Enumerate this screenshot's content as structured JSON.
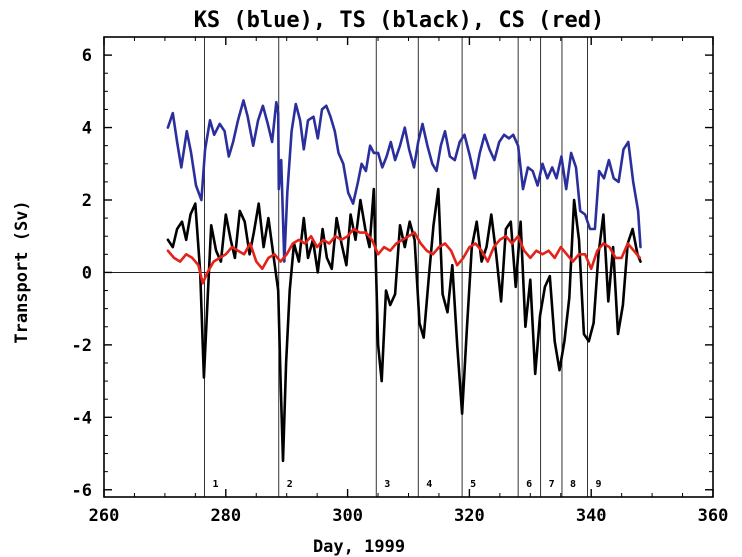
{
  "chart_data": {
    "type": "line",
    "title": "KS (blue), TS (black), CS (red)",
    "xlabel": "Day, 1999",
    "ylabel": "Transport (Sv)",
    "xlim": [
      260,
      360
    ],
    "ylim": [
      -6.2,
      6.5
    ],
    "xticks": [
      260,
      280,
      300,
      320,
      340,
      360
    ],
    "yticks": [
      -6,
      -4,
      -2,
      0,
      2,
      4,
      6
    ],
    "zero_line": true,
    "events": [
      {
        "label": "1",
        "x": 276.5
      },
      {
        "label": "2",
        "x": 288.7
      },
      {
        "label": "3",
        "x": 304.7
      },
      {
        "label": "4",
        "x": 311.6
      },
      {
        "label": "5",
        "x": 318.8
      },
      {
        "label": "6",
        "x": 328.0
      },
      {
        "label": "7",
        "x": 331.7
      },
      {
        "label": "8",
        "x": 335.2
      },
      {
        "label": "9",
        "x": 339.4
      }
    ],
    "series": [
      {
        "name": "KS",
        "color": "#2b2f9c",
        "x": [
          270.5,
          271.3,
          272.0,
          272.7,
          273.6,
          274.3,
          275.1,
          276.0,
          276.6,
          277.4,
          278.1,
          279.0,
          279.8,
          280.5,
          281.2,
          282.0,
          282.9,
          283.6,
          284.5,
          285.3,
          286.1,
          286.9,
          287.6,
          288.3,
          288.6,
          288.7,
          289.1,
          289.6,
          290.1,
          290.8,
          291.5,
          292.2,
          292.8,
          293.5,
          294.4,
          295.1,
          295.8,
          296.5,
          297.2,
          297.9,
          298.5,
          299.3,
          300.1,
          300.9,
          301.7,
          302.3,
          303.0,
          303.7,
          304.3,
          305.0,
          305.7,
          306.4,
          307.1,
          307.8,
          308.6,
          309.4,
          310.1,
          310.9,
          311.6,
          312.3,
          313.1,
          313.9,
          314.6,
          315.3,
          316.0,
          316.8,
          317.6,
          318.4,
          319.2,
          320.1,
          320.9,
          321.7,
          322.5,
          323.3,
          324.1,
          324.9,
          325.7,
          326.5,
          327.2,
          328.0,
          328.8,
          329.6,
          330.4,
          331.2,
          332.0,
          332.8,
          333.6,
          334.3,
          335.1,
          335.9,
          336.7,
          337.5,
          338.2,
          339.0,
          339.8,
          340.6,
          341.3,
          342.1,
          342.9,
          343.7,
          344.5,
          345.3,
          346.1,
          346.9,
          347.7,
          348.1
        ],
        "y": [
          4.0,
          4.4,
          3.6,
          2.9,
          3.9,
          3.3,
          2.4,
          2.0,
          3.4,
          4.2,
          3.8,
          4.1,
          3.9,
          3.2,
          3.6,
          4.2,
          4.75,
          4.3,
          3.5,
          4.2,
          4.6,
          4.1,
          3.6,
          4.7,
          4.4,
          2.3,
          3.1,
          0.3,
          2.2,
          3.9,
          4.65,
          4.2,
          3.4,
          4.2,
          4.3,
          3.7,
          4.5,
          4.6,
          4.3,
          3.9,
          3.3,
          3.0,
          2.2,
          1.9,
          2.5,
          3.0,
          2.8,
          3.5,
          3.3,
          3.3,
          2.9,
          3.2,
          3.6,
          3.1,
          3.5,
          4.0,
          3.4,
          2.9,
          3.6,
          4.1,
          3.5,
          3.0,
          2.8,
          3.5,
          3.9,
          3.2,
          3.1,
          3.6,
          3.8,
          3.2,
          2.6,
          3.3,
          3.8,
          3.4,
          3.1,
          3.6,
          3.8,
          3.7,
          3.8,
          3.5,
          2.3,
          2.9,
          2.8,
          2.4,
          3.0,
          2.6,
          2.9,
          2.6,
          3.2,
          2.3,
          3.3,
          2.9,
          1.7,
          1.6,
          1.2,
          1.2,
          2.8,
          2.6,
          3.1,
          2.6,
          2.5,
          3.4,
          3.6,
          2.5,
          1.7,
          0.7
        ]
      },
      {
        "name": "TS",
        "color": "#000000",
        "x": [
          270.5,
          271.3,
          272.0,
          272.8,
          273.5,
          274.2,
          275.0,
          275.8,
          276.4,
          277.0,
          277.6,
          278.4,
          279.2,
          280.0,
          280.8,
          281.5,
          282.3,
          283.1,
          283.9,
          284.6,
          285.4,
          286.2,
          287.0,
          287.8,
          288.6,
          289.0,
          289.4,
          289.9,
          290.5,
          291.2,
          292.0,
          292.8,
          293.5,
          294.3,
          295.1,
          295.9,
          296.6,
          297.4,
          298.2,
          299.0,
          299.8,
          300.5,
          301.3,
          302.1,
          302.9,
          303.6,
          304.3,
          305.0,
          305.6,
          306.3,
          307.0,
          307.8,
          308.6,
          309.4,
          310.2,
          311.0,
          311.8,
          312.5,
          313.3,
          314.1,
          314.9,
          315.6,
          316.4,
          317.2,
          318.0,
          318.8,
          319.6,
          320.4,
          321.2,
          322.0,
          322.8,
          323.6,
          324.4,
          325.2,
          326.0,
          326.8,
          327.6,
          328.4,
          329.2,
          330.0,
          330.8,
          331.6,
          332.4,
          333.2,
          334.0,
          334.8,
          335.6,
          336.4,
          337.2,
          338.0,
          338.8,
          339.6,
          340.4,
          341.2,
          342.0,
          342.8,
          343.6,
          344.4,
          345.2,
          346.0,
          346.8,
          347.6,
          348.1
        ],
        "y": [
          0.9,
          0.7,
          1.2,
          1.4,
          0.9,
          1.6,
          1.9,
          0.0,
          -2.9,
          -0.8,
          1.3,
          0.6,
          0.3,
          1.6,
          0.9,
          0.4,
          1.7,
          1.4,
          0.5,
          1.1,
          1.9,
          0.7,
          1.5,
          0.5,
          -0.5,
          -3.0,
          -5.2,
          -2.5,
          -0.5,
          0.8,
          0.3,
          1.5,
          0.4,
          0.9,
          0.0,
          1.2,
          0.4,
          0.1,
          1.5,
          0.8,
          0.2,
          1.6,
          0.9,
          2.0,
          1.2,
          0.7,
          2.3,
          -2.0,
          -3.0,
          -0.5,
          -0.9,
          -0.6,
          1.3,
          0.7,
          1.4,
          0.9,
          -1.4,
          -1.8,
          -0.2,
          1.3,
          2.3,
          -0.6,
          -1.1,
          0.2,
          -2.0,
          -3.9,
          -1.5,
          0.7,
          1.4,
          0.3,
          0.7,
          1.6,
          0.5,
          -0.8,
          1.2,
          1.4,
          -0.4,
          1.4,
          -1.5,
          -0.2,
          -2.8,
          -1.2,
          -0.4,
          -0.1,
          -1.9,
          -2.7,
          -1.9,
          -0.7,
          2.0,
          0.9,
          -1.7,
          -1.9,
          -1.4,
          0.5,
          1.6,
          -0.8,
          0.7,
          -1.7,
          -0.9,
          0.8,
          1.2,
          0.5,
          0.3
        ]
      },
      {
        "name": "CS",
        "color": "#e32219",
        "x": [
          270.5,
          271.5,
          272.5,
          273.5,
          274.5,
          275.5,
          276.2,
          277.0,
          278.0,
          279.0,
          280.0,
          281.0,
          282.0,
          283.0,
          284.0,
          285.0,
          286.0,
          287.0,
          288.0,
          289.0,
          290.0,
          291.0,
          292.0,
          293.0,
          294.0,
          295.0,
          296.0,
          297.0,
          298.0,
          299.0,
          300.0,
          301.0,
          302.0,
          303.0,
          304.0,
          305.0,
          306.0,
          307.0,
          308.0,
          309.0,
          310.0,
          311.0,
          312.0,
          313.0,
          314.0,
          315.0,
          316.0,
          317.0,
          318.0,
          319.0,
          320.0,
          321.0,
          322.0,
          323.0,
          324.0,
          325.0,
          326.0,
          327.0,
          328.0,
          329.0,
          330.0,
          331.0,
          332.0,
          333.0,
          334.0,
          335.0,
          336.0,
          337.0,
          338.0,
          339.0,
          340.0,
          341.0,
          342.0,
          343.0,
          344.0,
          345.0,
          346.0,
          347.0,
          348.0
        ],
        "y": [
          0.6,
          0.4,
          0.3,
          0.5,
          0.4,
          0.2,
          -0.3,
          0.0,
          0.3,
          0.4,
          0.5,
          0.7,
          0.6,
          0.5,
          0.8,
          0.3,
          0.1,
          0.4,
          0.5,
          0.3,
          0.5,
          0.8,
          0.9,
          0.8,
          1.0,
          0.7,
          0.9,
          0.8,
          1.0,
          0.9,
          1.0,
          1.2,
          1.1,
          1.1,
          0.9,
          0.5,
          0.7,
          0.6,
          0.8,
          0.9,
          1.0,
          1.1,
          0.8,
          0.6,
          0.5,
          0.7,
          0.8,
          0.6,
          0.2,
          0.4,
          0.7,
          0.8,
          0.6,
          0.3,
          0.7,
          0.9,
          1.0,
          0.8,
          1.0,
          0.6,
          0.4,
          0.6,
          0.5,
          0.6,
          0.4,
          0.7,
          0.5,
          0.3,
          0.5,
          0.5,
          0.1,
          0.6,
          0.8,
          0.7,
          0.4,
          0.4,
          0.8,
          0.6,
          0.4
        ]
      }
    ]
  }
}
